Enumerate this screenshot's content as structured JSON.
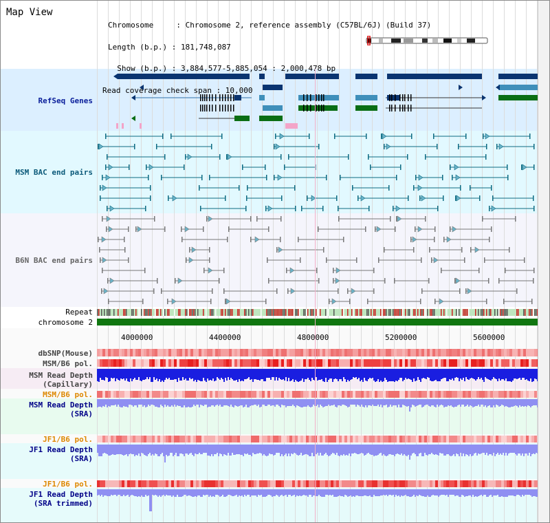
{
  "window": {
    "title": "Map View"
  },
  "header": {
    "info_lines": [
      "Chromosome     : Chromosome 2, reference assembly (C57BL/6J) (Build 37)",
      "Length (b.p.) : 181,748,087",
      "  Show (b.p.) : 3,884,577-5,885,054 : 2,000,478 bp",
      "Read coverage check span : 10,000"
    ]
  },
  "tracks": {
    "refseq": {
      "label": "RefSeq Genes",
      "color": "#0a3470"
    },
    "msm_bac": {
      "label": "MSM BAC end pairs",
      "color": "#0c6a82"
    },
    "b6n_bac": {
      "label": "B6N BAC end pairs",
      "color": "#777777"
    },
    "repeat": {
      "label": "Repeat"
    },
    "chromosome": {
      "label": "chromosome 2",
      "color": "#117711"
    },
    "dbsnp": {
      "label": "dbSNP(Mouse)"
    },
    "msm_b6_pol_1": {
      "label": "MSM/B6 pol."
    },
    "msm_read_depth_cap": {
      "label": "MSM Read Depth\n(Capillary)"
    },
    "msm_b6_pol_2": {
      "label": "MSM/B6 pol."
    },
    "msm_read_depth_sra": {
      "label": "MSM Read Depth\n(SRA)"
    },
    "jf1_b6_pol_1": {
      "label": "JF1/B6 pol."
    },
    "jf1_read_depth_sra": {
      "label": "JF1 Read Depth\n(SRA)"
    },
    "jf1_b6_pol_2": {
      "label": "JF1/B6 pol."
    },
    "jf1_read_depth_trim": {
      "label": "JF1 Read Depth\n(SRA trimmed)"
    }
  },
  "axis": {
    "ticks": [
      "4000000",
      "4400000",
      "4800000",
      "5200000",
      "5600000"
    ]
  },
  "colors": {
    "refseq_bg": "#dcefff",
    "bac_bg": "#e2f9ff",
    "b6n_bg": "#f4f4fb",
    "sra_bg": "#e5fcf7",
    "depth_blue": "#1a1ee0",
    "depth_light": "#8f8ff2",
    "snp_red": "#f08080",
    "pol_red": "#e82020",
    "label_orange": "#dd8800",
    "label_navy": "#000088"
  },
  "icons": {
    "chromosome_ideogram": "chromosome-ideogram-icon"
  }
}
